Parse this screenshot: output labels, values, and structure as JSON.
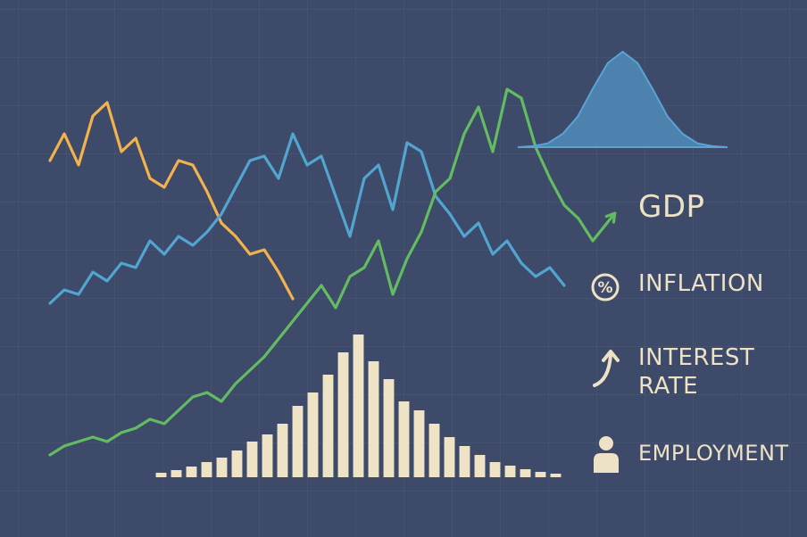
{
  "chart_data": [
    {
      "type": "line",
      "xlim": [
        0,
        100
      ],
      "ylim": [
        0,
        100
      ],
      "series": [
        {
          "color": "#f2b24c",
          "x": [
            2,
            4,
            6,
            8,
            10,
            12,
            14,
            16,
            18,
            20,
            22,
            24,
            26,
            28,
            30,
            32,
            34,
            36
          ],
          "values": [
            76,
            82,
            75,
            86,
            89,
            78,
            81,
            72,
            70,
            76,
            75,
            69,
            62,
            59,
            55,
            56,
            51,
            45
          ]
        },
        {
          "color": "#52a5d1",
          "x": [
            2,
            4,
            6,
            8,
            10,
            12,
            14,
            16,
            18,
            20,
            22,
            24,
            26,
            28,
            30,
            32,
            34,
            36,
            38,
            40,
            42,
            44,
            46,
            48,
            50,
            52,
            54,
            56,
            58,
            60,
            62,
            64,
            66,
            68,
            70,
            72,
            74
          ],
          "values": [
            44,
            47,
            46,
            51,
            49,
            53,
            52,
            58,
            55,
            59,
            57,
            60,
            64,
            70,
            76,
            77,
            72,
            82,
            75,
            77,
            68,
            59,
            72,
            75,
            65,
            80,
            78,
            68,
            64,
            59,
            62,
            55,
            58,
            53,
            50,
            52,
            48
          ]
        },
        {
          "color": "#63bb62",
          "x": [
            2,
            4,
            6,
            8,
            10,
            12,
            14,
            16,
            18,
            20,
            22,
            24,
            26,
            28,
            30,
            32,
            34,
            36,
            38,
            40,
            42,
            44,
            46,
            48,
            50,
            52,
            54,
            56,
            58,
            60,
            62,
            64,
            66,
            68,
            70,
            72,
            74,
            76,
            78,
            80
          ],
          "values": [
            10,
            12,
            13,
            14,
            13,
            15,
            16,
            18,
            17,
            20,
            23,
            24,
            22,
            26,
            29,
            32,
            36,
            40,
            44,
            48,
            43,
            50,
            52,
            58,
            46,
            54,
            60,
            69,
            72,
            82,
            88,
            78,
            92,
            90,
            79,
            72,
            66,
            63,
            58,
            62
          ]
        }
      ],
      "annotations": [
        {
          "text": "GDP"
        },
        {
          "icon": "%",
          "text": "INFLATION"
        },
        {
          "text": "INTEREST RATE"
        },
        {
          "text": "EMPLOYMENT"
        }
      ]
    },
    {
      "type": "histogram",
      "color": "#efe3c6",
      "bins": [
        0,
        1,
        2,
        3,
        4,
        5,
        6,
        7,
        8,
        9,
        10,
        11,
        12,
        13,
        14,
        15,
        16,
        17,
        18,
        19,
        20,
        21,
        22,
        23,
        24,
        25,
        26,
        27
      ],
      "counts": [
        5,
        8,
        12,
        17,
        22,
        30,
        40,
        48,
        60,
        80,
        95,
        115,
        140,
        160,
        130,
        110,
        85,
        75,
        60,
        45,
        35,
        25,
        17,
        13,
        9,
        6,
        4
      ],
      "xlim": [
        0,
        27
      ],
      "ylim": [
        0,
        160
      ]
    },
    {
      "type": "area",
      "color": "#4f87b6",
      "x": [
        -3,
        -2.5,
        -2,
        -1.5,
        -1,
        -0.5,
        0,
        0.5,
        1,
        1.5,
        2,
        2.5,
        3
      ],
      "values": [
        1,
        4,
        14,
        32,
        61,
        88,
        100,
        88,
        61,
        32,
        14,
        4,
        1
      ],
      "xlim": [
        -3.5,
        3.5
      ],
      "ylim": [
        0,
        100
      ]
    }
  ]
}
